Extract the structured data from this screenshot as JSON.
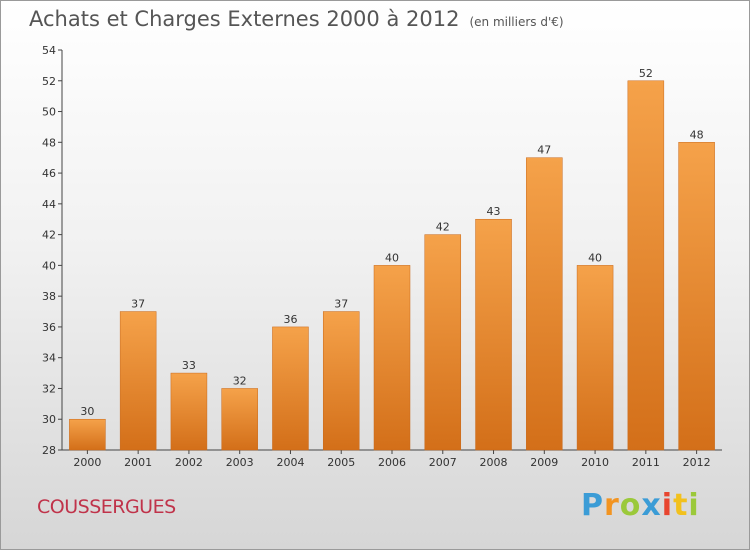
{
  "header": {
    "title": "Achats et Charges Externes 2000 à 2012",
    "subtitle": "(en milliers d'€)"
  },
  "footer": {
    "commune": "COUSSERGUES",
    "logo": [
      "P",
      "r",
      "o",
      "x",
      "i",
      "t",
      "i"
    ]
  },
  "colors": {
    "bar_light": "#f5a24a",
    "bar_dark": "#d36f19",
    "commune_text": "#c0334a"
  },
  "chart_data": {
    "type": "bar",
    "title": "Achats et Charges Externes 2000 à 2012",
    "subtitle": "(en milliers d'€)",
    "xlabel": "",
    "ylabel": "",
    "categories": [
      "2000",
      "2001",
      "2002",
      "2003",
      "2004",
      "2005",
      "2006",
      "2007",
      "2008",
      "2009",
      "2010",
      "2011",
      "2012"
    ],
    "values": [
      30,
      37,
      33,
      32,
      36,
      37,
      40,
      42,
      43,
      47,
      40,
      52,
      48
    ],
    "ylim": [
      28,
      54
    ],
    "yticks": [
      28,
      30,
      32,
      34,
      36,
      38,
      40,
      42,
      44,
      46,
      48,
      50,
      52,
      54
    ],
    "grid": false,
    "data_labels": true
  }
}
